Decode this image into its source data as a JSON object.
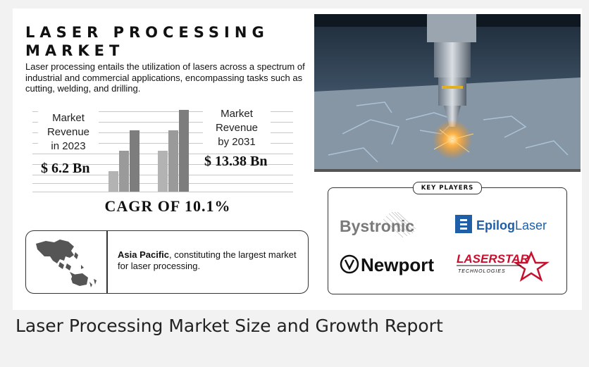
{
  "infographic": {
    "title_line1": "LASER PROCESSING",
    "title_line2": "MARKET",
    "description": "Laser processing entails the utilization of lasers across a spectrum of industrial and commercial applications, encompassing tasks such as cutting, welding, and drilling.",
    "revenue_2023": {
      "label_line1": "Market",
      "label_line2": "Revenue",
      "label_line3": "in 2023",
      "value": "$ 6.2 Bn"
    },
    "revenue_2031": {
      "label_line1": "Market",
      "label_line2": "Revenue",
      "label_line3": "by 2031",
      "value": "$ 13.38 Bn"
    },
    "cagr": "CAGR OF 10.1%",
    "region": {
      "name": "Asia Pacific",
      "text": ", constituting the largest market for laser processing."
    },
    "key_players": {
      "label": "KEY PLAYERS",
      "bystronic": "Bystronic",
      "epilog": "Epilog",
      "epilog_suffix": "Laser",
      "newport": "Newport",
      "laserstar": "LASERSTAR",
      "laserstar_sub": "TECHNOLOGIES"
    }
  },
  "caption": "Laser Processing Market Size and Growth Report",
  "chart_data": {
    "type": "bar",
    "groups": [
      {
        "name": "2023",
        "values": [
          1,
          2,
          3
        ]
      },
      {
        "name": "2031",
        "values": [
          2,
          3,
          4
        ]
      }
    ],
    "colors": [
      "#b3b3b3",
      "#9a9a9a",
      "#7d7d7d"
    ]
  },
  "colors": {
    "epilog_blue": "#1f5fa8",
    "laserstar_red": "#c8102e",
    "bystronic_gray": "#7a7a7a"
  }
}
